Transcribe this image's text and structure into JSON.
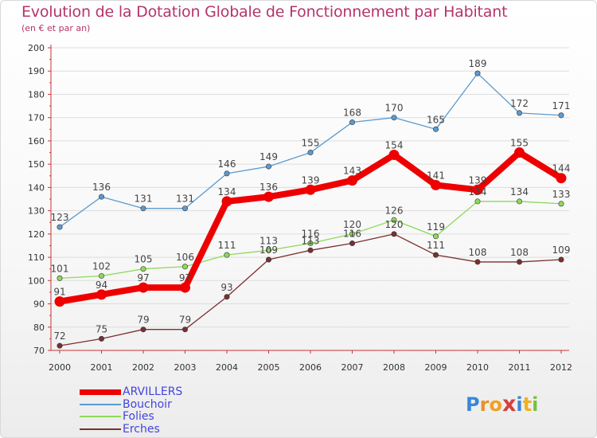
{
  "header": {
    "title": "Evolution de la Dotation Globale de Fonctionnement par Habitant",
    "subtitle": "(en € et par an)"
  },
  "logo": {
    "text": "Proxiti",
    "colors": [
      "#3a86d8",
      "#e8912a",
      "#f0a020",
      "#d53e3e",
      "#3a86d8",
      "#f0b020",
      "#76c043"
    ]
  },
  "chart_data": {
    "type": "line",
    "title": "Evolution de la Dotation Globale de Fonctionnement par Habitant",
    "subtitle": "(en € et par an)",
    "xlabel": "",
    "ylabel": "",
    "ylim": [
      70,
      200
    ],
    "yticks": [
      70,
      80,
      90,
      100,
      110,
      120,
      130,
      140,
      150,
      160,
      170,
      180,
      190,
      200
    ],
    "grid": "horizontal",
    "legend": "bottom-left",
    "categories": [
      "2000",
      "2001",
      "2002",
      "2003",
      "2004",
      "2005",
      "2006",
      "2007",
      "2008",
      "2009",
      "2010",
      "2011",
      "2012"
    ],
    "series": [
      {
        "name": "ARVILLERS",
        "color": "#ee0000",
        "values": [
          91,
          94,
          97,
          97,
          134,
          136,
          139,
          143,
          154,
          141,
          139,
          155,
          144
        ]
      },
      {
        "name": "Bouchoir",
        "color": "#5b9bd0",
        "values": [
          123,
          136,
          131,
          131,
          146,
          149,
          155,
          168,
          170,
          165,
          189,
          172,
          171
        ]
      },
      {
        "name": "Folies",
        "color": "#8fd85c",
        "values": [
          101,
          102,
          105,
          106,
          111,
          113,
          116,
          120,
          126,
          119,
          134,
          134,
          133
        ]
      },
      {
        "name": "Erches",
        "color": "#7a3030",
        "values": [
          72,
          75,
          79,
          79,
          93,
          109,
          113,
          116,
          120,
          111,
          108,
          108,
          109
        ]
      }
    ]
  }
}
